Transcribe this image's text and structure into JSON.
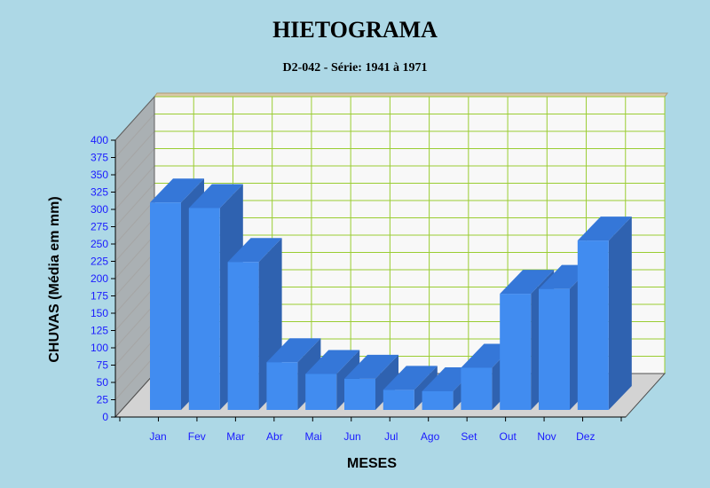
{
  "chart_data": {
    "type": "bar",
    "title": "HIETOGRAMA",
    "subtitle": "D2-042 - Série: 1941 à 1971",
    "xlabel": "MESES",
    "ylabel": "CHUVAS  (Média em mm)",
    "categories": [
      "Jan",
      "Fev",
      "Mar",
      "Abr",
      "Mai",
      "Jun",
      "Jul",
      "Ago",
      "Set",
      "Out",
      "Nov",
      "Dez"
    ],
    "values": [
      300,
      292,
      214,
      69,
      52,
      45,
      29,
      27,
      61,
      168,
      175,
      245
    ],
    "ylim": [
      0,
      400
    ],
    "yticks": [
      "0",
      "25",
      "50",
      "75",
      "100",
      "125",
      "150",
      "175",
      "200",
      "225",
      "250",
      "275",
      "300",
      "325",
      "350",
      "375",
      "400"
    ],
    "grid": true,
    "legend": "none",
    "colors": {
      "background": "#add8e6",
      "bar_front": "#418cf0",
      "bar_side": "#2f62b0",
      "bar_top": "#3577d8",
      "wall": "#a9a9a9",
      "floor": "#d3d3d3",
      "plot_back": "#f8f8f8",
      "grid": "#9acd32",
      "tick_label": "#1a1aff"
    }
  }
}
